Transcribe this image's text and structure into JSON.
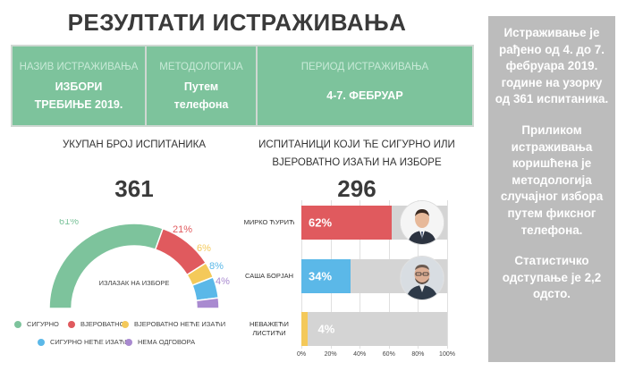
{
  "title": "РЕЗУЛТАТИ ИСТРАЖИВАЊА",
  "info": [
    {
      "head": "НАЗИВ ИСТРАЖИВАЊА",
      "value": "ИЗБОРИ ТРЕБИЊЕ 2019."
    },
    {
      "head": "МЕТОДОЛОГИЈА",
      "value": "Путем телефона"
    },
    {
      "head": "ПЕРИОД ИСТРАЖИВАЊА",
      "value": "4-7. ФЕБРУАР"
    }
  ],
  "sidebar": {
    "p1": "Истраживање је рађено од 4. до 7. фебруара 2019. године на узорку од 361 испитаника.",
    "p2": "Приликом истраживања коришћена је методологија случајног избора путем фиксног телефона.",
    "p3": "Статистичко одступање је 2,2 одсто."
  },
  "colors": {
    "green": "#7dc39c",
    "red": "#e05a5e",
    "yellow": "#f4c95a",
    "blue": "#5bb8e8",
    "purple": "#a98ad0",
    "grey": "#d4d4d4"
  },
  "chart_data": [
    {
      "type": "pie",
      "title": "УКУПАН БРОЈ ИСПИТАНИКА",
      "total": "361",
      "center_label": "ИЗЛАЗАК НА ИЗБОРЕ",
      "series": [
        {
          "name": "СИГУРНО",
          "value": 61,
          "label": "61%",
          "color": "#7dc39c"
        },
        {
          "name": "ВЈЕРОВАТНО",
          "value": 21,
          "label": "21%",
          "color": "#e05a5e"
        },
        {
          "name": "ВЈЕРОВАТНО НЕЋЕ ИЗАЋИ",
          "value": 6,
          "label": "6%",
          "color": "#f4c95a"
        },
        {
          "name": "СИГУРНО НЕЋЕ ИЗАЋИ",
          "value": 8,
          "label": "8%",
          "color": "#5bb8e8"
        },
        {
          "name": "НЕМА ОДГОВОРА",
          "value": 4,
          "label": "4%",
          "color": "#a98ad0"
        }
      ]
    },
    {
      "type": "bar",
      "title": "ИСПИТАНИЦИ КОЈИ ЋЕ СИГУРНО ИЛИ ВЈЕРОВАТНО ИЗАЋИ НА ИЗБОРЕ",
      "total": "296",
      "categories": [
        "МИРКО ЋУРИЋ",
        "САША БОРЈАН",
        "НЕВАЖЕЋИ ЛИСТИЋИ"
      ],
      "values": [
        62,
        34,
        4
      ],
      "value_labels": [
        "62%",
        "34%",
        "4%"
      ],
      "colors": [
        "#e05a5e",
        "#5bb8e8",
        "#f4c95a"
      ],
      "xlim": [
        0,
        100
      ],
      "xticks": [
        "0%",
        "20%",
        "40%",
        "60%",
        "80%",
        "100%"
      ]
    }
  ]
}
